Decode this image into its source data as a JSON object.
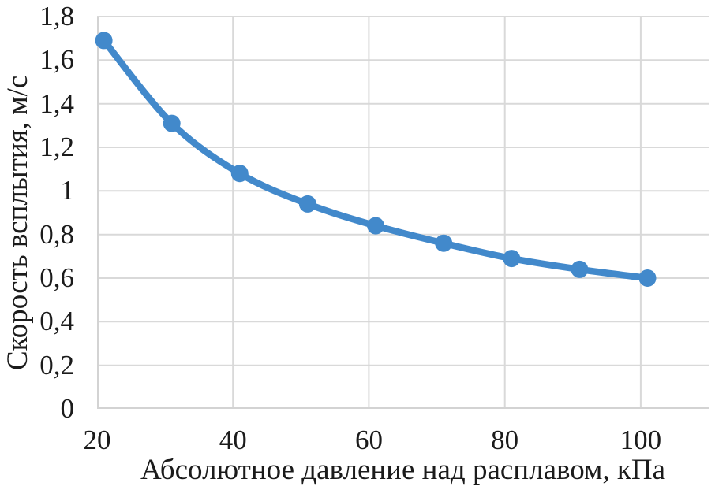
{
  "chart_data": {
    "type": "line",
    "title": "",
    "xlabel": "Абсолютное давление над расплавом, кПа",
    "ylabel": "Скорость всплытия, м/с",
    "x": [
      21,
      31,
      41,
      51,
      61,
      71,
      81,
      91,
      101
    ],
    "series": [
      {
        "name": "Скорость всплытия, м/с",
        "values": [
          1.69,
          1.31,
          1.08,
          0.94,
          0.84,
          0.76,
          0.69,
          0.64,
          0.6
        ]
      }
    ],
    "xlim": [
      20,
      110
    ],
    "ylim": [
      0,
      1.8
    ],
    "x_ticks": [
      20,
      40,
      60,
      80,
      100
    ],
    "x_tick_labels": [
      "20",
      "40",
      "60",
      "80",
      "100"
    ],
    "y_ticks": [
      0,
      0.2,
      0.4,
      0.6,
      0.8,
      1,
      1.2,
      1.4,
      1.6,
      1.8
    ],
    "y_tick_labels": [
      "0",
      "0,2",
      "0,4",
      "0,6",
      "0,8",
      "1",
      "1,2",
      "1,4",
      "1,6",
      "1,8"
    ],
    "decimal_separator": ",",
    "grid": "both",
    "legend_position": "none",
    "marker": "circle",
    "smooth_line": true,
    "colors": {
      "line": "#4289CB",
      "grid": "#D9D9D9",
      "axis": "#D3D3D3",
      "text": "#1B1B1B",
      "background": "#FFFFFF"
    }
  }
}
